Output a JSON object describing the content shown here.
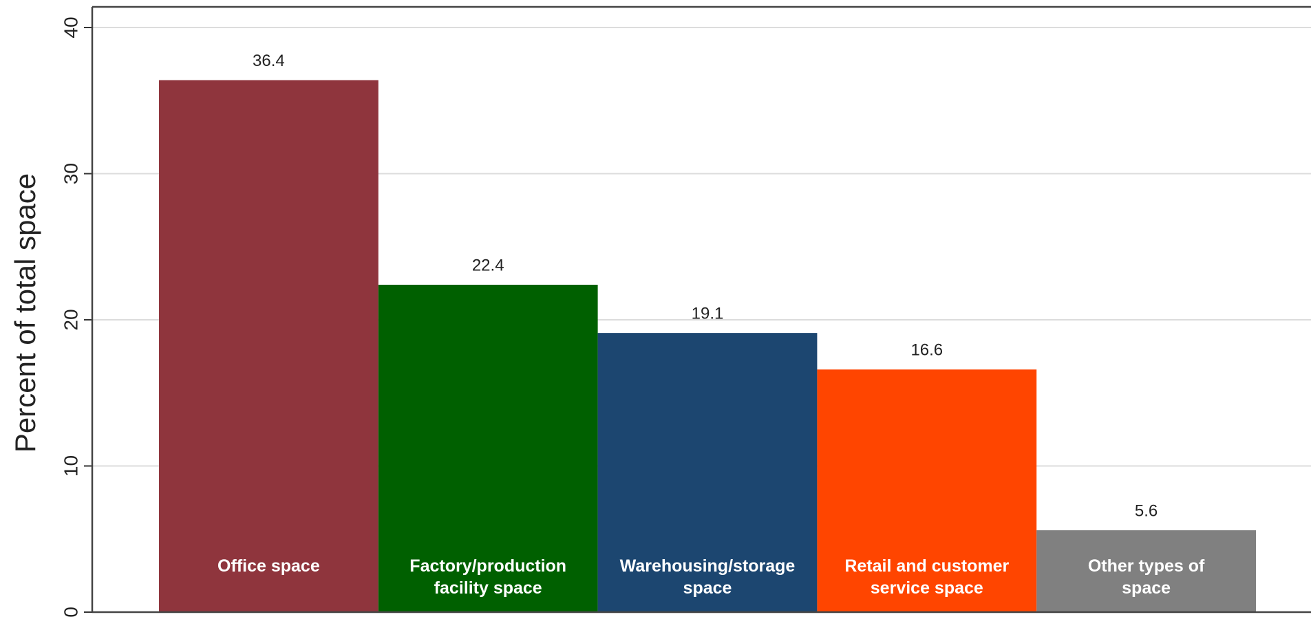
{
  "chart_data": {
    "type": "bar",
    "ylabel": "Percent of total space",
    "categories": [
      "Office space",
      "Factory/production\nfacility space",
      "Warehousing/storage\nspace",
      "Retail and customer\nservice space",
      "Other types of\nspace"
    ],
    "values": [
      36.4,
      22.4,
      19.1,
      16.6,
      5.6
    ],
    "colors": [
      "#8f353d",
      "#006000",
      "#1c4670",
      "#ff4500",
      "#808080"
    ],
    "ylim": [
      0,
      40
    ],
    "yticks": [
      0,
      10,
      20,
      30,
      40
    ],
    "grid": true
  }
}
